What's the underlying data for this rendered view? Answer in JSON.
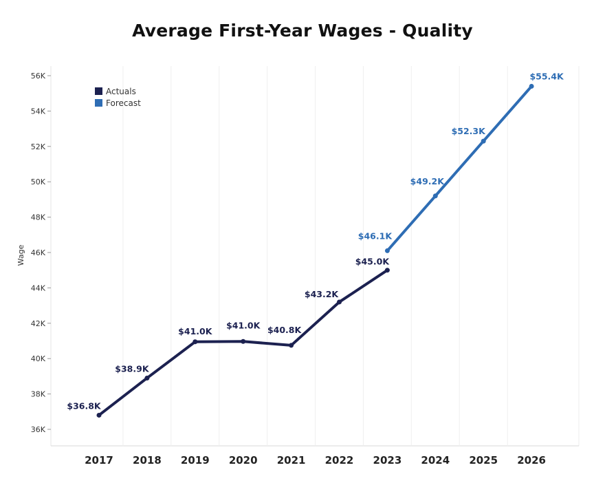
{
  "chart_data": {
    "type": "line",
    "title": "Average First-Year Wages - Quality",
    "xlabel": "",
    "ylabel": "Wage",
    "x": [
      "2017",
      "2018",
      "2019",
      "2020",
      "2021",
      "2022",
      "2023",
      "2024",
      "2025",
      "2026"
    ],
    "ylim": [
      35000,
      56800
    ],
    "yticks": [
      36000,
      38000,
      40000,
      42000,
      44000,
      46000,
      48000,
      50000,
      52000,
      54000,
      56000
    ],
    "ytick_labels": [
      "36K",
      "38K",
      "40K",
      "42K",
      "44K",
      "46K",
      "48K",
      "50K",
      "52K",
      "54K",
      "56K"
    ],
    "grid": "vertical",
    "legend_position": "top-left",
    "series": [
      {
        "name": "Actuals",
        "color": "#1c2150",
        "points": [
          {
            "x": "2017",
            "y": 36800,
            "label": "$36.8K"
          },
          {
            "x": "2018",
            "y": 38900,
            "label": "$38.9K"
          },
          {
            "x": "2019",
            "y": 40950,
            "label": "$41.0K"
          },
          {
            "x": "2020",
            "y": 40970,
            "label": "$41.0K"
          },
          {
            "x": "2021",
            "y": 40750,
            "label": "$40.8K"
          },
          {
            "x": "2022",
            "y": 43200,
            "label": "$43.2K"
          },
          {
            "x": "2023",
            "y": 45000,
            "label": "$45.0K"
          }
        ]
      },
      {
        "name": "Forecast",
        "color": "#2e6db4",
        "points": [
          {
            "x": "2023",
            "y": 46100,
            "label": "$46.1K"
          },
          {
            "x": "2024",
            "y": 49200,
            "label": "$49.2K"
          },
          {
            "x": "2025",
            "y": 52300,
            "label": "$52.3K"
          },
          {
            "x": "2026",
            "y": 55400,
            "label": "$55.4K"
          }
        ]
      }
    ]
  }
}
